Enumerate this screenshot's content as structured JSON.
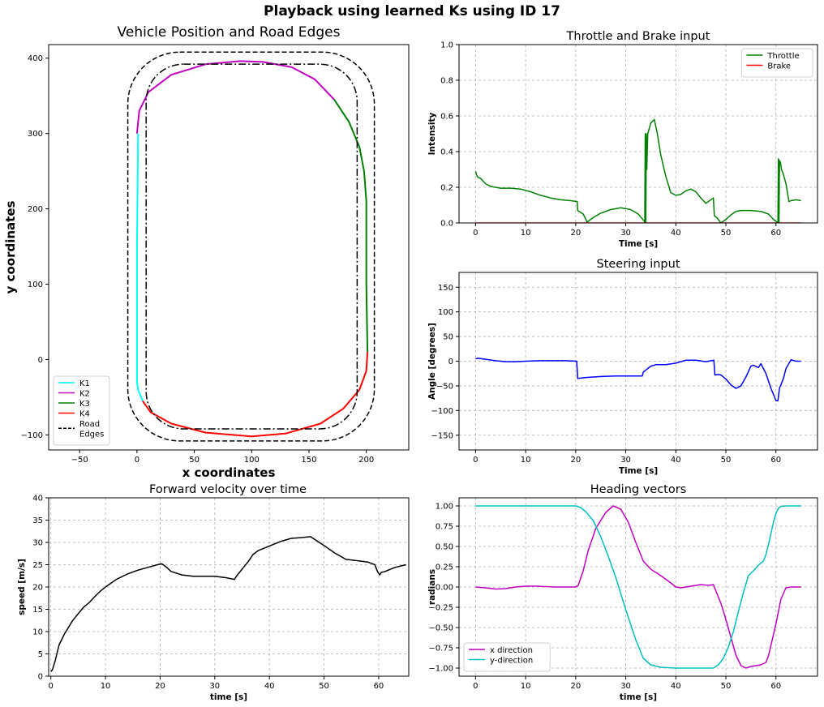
{
  "suptitle": "Playback using learned Ks using ID 17",
  "chart_data": [
    {
      "id": "position",
      "type": "line",
      "title": "Vehicle Position and Road Edges",
      "xlabel": "x coordinates",
      "ylabel": "y coordinates",
      "xlim": [
        -77,
        237
      ],
      "ylim": [
        -120,
        418
      ],
      "xticks": [
        -50,
        0,
        50,
        100,
        150,
        200
      ],
      "yticks": [
        -100,
        0,
        100,
        200,
        300,
        400
      ],
      "grid": false,
      "legend": {
        "position": "lower-left",
        "entries": [
          "K1",
          "K2",
          "K3",
          "K4",
          "Road\nEdges"
        ]
      },
      "series": [
        {
          "name": "K1",
          "color": "#00ffff",
          "x": [
            5,
            1,
            0,
            0,
            0,
            1
          ],
          "y": [
            -55,
            -40,
            -30,
            30,
            150,
            300
          ]
        },
        {
          "name": "K2",
          "color": "#c000c0",
          "x": [
            0,
            2,
            10,
            30,
            60,
            90,
            110,
            135,
            155,
            172
          ],
          "y": [
            300,
            330,
            355,
            378,
            392,
            396,
            395,
            388,
            372,
            345
          ]
        },
        {
          "name": "K3",
          "color": "#008000",
          "x": [
            172,
            185,
            194,
            198,
            200,
            200,
            201
          ],
          "y": [
            345,
            315,
            282,
            250,
            210,
            100,
            10
          ]
        },
        {
          "name": "K4",
          "color": "#ff0000",
          "x": [
            201,
            200,
            194,
            180,
            160,
            130,
            100,
            60,
            30,
            12,
            5
          ],
          "y": [
            10,
            -15,
            -40,
            -65,
            -85,
            -98,
            -102,
            -97,
            -85,
            -70,
            -55
          ]
        },
        {
          "name": "Road Edges",
          "color": "#000000",
          "style": "dashed",
          "role": "outer-edge",
          "bounds": {
            "xmin": -8,
            "xmax": 207,
            "ymin": -108,
            "ymax": 408
          }
        },
        {
          "role": "inner-edge",
          "color": "#000000",
          "style": "dashdot",
          "bounds": {
            "xmin": 8,
            "xmax": 192,
            "ymin": -92,
            "ymax": 392
          }
        }
      ]
    },
    {
      "id": "throttle",
      "type": "line",
      "title": "Throttle and Brake input",
      "xlabel": "Time [s]",
      "ylabel": "Intensity",
      "xlim": [
        -3.3,
        68.3
      ],
      "ylim": [
        0,
        1.0
      ],
      "xticks": [
        0,
        10,
        20,
        30,
        40,
        50,
        60
      ],
      "yticks": [
        0.0,
        0.2,
        0.4,
        0.6,
        0.8,
        1.0
      ],
      "grid": true,
      "legend": {
        "position": "top-right",
        "entries": [
          "Throttle",
          "Brake"
        ]
      },
      "series": [
        {
          "name": "Throttle",
          "color": "#008000",
          "x": [
            0,
            0.2,
            0.5,
            1,
            2,
            3,
            5,
            7,
            9,
            11,
            13,
            15,
            17,
            19,
            20.3,
            20.4,
            21.5,
            22.3,
            23.5,
            25,
            27,
            29,
            31,
            32.5,
            33.7,
            33.8,
            33.9,
            34.0,
            34.1,
            34.2,
            34.4,
            35,
            35.7,
            36.3,
            37,
            38,
            39,
            40,
            41,
            42,
            43,
            44,
            45,
            46,
            47.5,
            47.7,
            48.2,
            49,
            50,
            51,
            52,
            53,
            55,
            57,
            58.5,
            59.5,
            60.4,
            60.5,
            60.6,
            60.7,
            60.9,
            61.1,
            61.4,
            62,
            62.6,
            63,
            64,
            65
          ],
          "y": [
            0.29,
            0.27,
            0.255,
            0.25,
            0.22,
            0.205,
            0.195,
            0.195,
            0.19,
            0.175,
            0.155,
            0.14,
            0.13,
            0.125,
            0.12,
            0.07,
            0.05,
            0.005,
            0.03,
            0.055,
            0.075,
            0.085,
            0.075,
            0.05,
            0.01,
            0.0,
            0.5,
            0.0,
            0.5,
            0.3,
            0.5,
            0.56,
            0.58,
            0.5,
            0.38,
            0.26,
            0.17,
            0.155,
            0.16,
            0.18,
            0.19,
            0.175,
            0.14,
            0.11,
            0.14,
            0.04,
            0.03,
            0.0,
            0.02,
            0.045,
            0.065,
            0.07,
            0.07,
            0.065,
            0.05,
            0.02,
            0.0,
            0.36,
            0.0,
            0.35,
            0.34,
            0.3,
            0.28,
            0.22,
            0.12,
            0.125,
            0.13,
            0.125
          ]
        },
        {
          "name": "Brake",
          "color": "#ff0000",
          "x": [
            0,
            65
          ],
          "y": [
            0,
            0
          ]
        }
      ]
    },
    {
      "id": "steering",
      "type": "line",
      "title": "Steering input",
      "xlabel": "Time [s]",
      "ylabel": "Angle [degrees]",
      "xlim": [
        -3.3,
        68.3
      ],
      "ylim": [
        -180,
        180
      ],
      "xticks": [
        0,
        10,
        20,
        30,
        40,
        50,
        60
      ],
      "yticks": [
        -150,
        -100,
        -50,
        0,
        50,
        100,
        150
      ],
      "grid": true,
      "series": [
        {
          "name": "",
          "color": "#0000ff",
          "x": [
            0,
            0.5,
            2,
            4,
            6,
            8,
            10,
            13,
            16,
            18,
            20.2,
            20.4,
            22,
            25,
            28,
            30,
            32,
            33.3,
            33.5,
            34,
            35,
            36,
            38,
            40,
            42,
            44,
            46,
            47.6,
            47.8,
            48.5,
            49,
            50,
            51,
            52,
            53,
            54,
            55,
            55.5,
            56.5,
            57,
            58,
            59,
            60,
            60.4,
            60.7,
            61.5,
            62,
            63,
            64,
            65
          ],
          "y": [
            5,
            6,
            4,
            1,
            -1,
            -1,
            0,
            1,
            1,
            1,
            0,
            -35,
            -33,
            -31,
            -30,
            -30,
            -30,
            -30,
            -22,
            -18,
            -10,
            -7,
            -7,
            -4,
            2,
            2,
            -1,
            2,
            -28,
            -27,
            -28,
            -36,
            -48,
            -55,
            -50,
            -32,
            -10,
            -8,
            -13,
            -5,
            -25,
            -55,
            -80,
            -80,
            -55,
            -35,
            -15,
            3,
            0,
            0
          ]
        }
      ]
    },
    {
      "id": "velocity",
      "type": "line",
      "title": "Forward velocity over time",
      "xlabel": "time [s]",
      "ylabel": "speed [m/s]",
      "xlim": [
        -0.4,
        65.5
      ],
      "ylim": [
        0,
        40
      ],
      "xticks": [
        0,
        10,
        20,
        30,
        40,
        50,
        60
      ],
      "yticks": [
        0,
        5,
        10,
        15,
        20,
        25,
        30,
        35,
        40
      ],
      "grid": true,
      "series": [
        {
          "name": "",
          "color": "#000000",
          "x": [
            0,
            0.3,
            0.8,
            1.5,
            2.5,
            3,
            4,
            5,
            6,
            7,
            8,
            9,
            10,
            12,
            14,
            16,
            18,
            19.5,
            20.3,
            21,
            22,
            24,
            26,
            28,
            30,
            32,
            33.6,
            34,
            35,
            36,
            37,
            38,
            40,
            42,
            44,
            46,
            47.5,
            48,
            49,
            50,
            52,
            54,
            56,
            58,
            59.3,
            59.8,
            60.2,
            60.5,
            61,
            62,
            63,
            64,
            65
          ],
          "y": [
            1.0,
            1.5,
            3.5,
            7.0,
            9.5,
            10.5,
            12.5,
            14.0,
            15.5,
            16.5,
            17.8,
            19.0,
            20.0,
            21.7,
            22.9,
            23.8,
            24.5,
            25.0,
            25.2,
            24.6,
            23.5,
            22.7,
            22.4,
            22.4,
            22.4,
            22.1,
            21.7,
            22.5,
            24.0,
            25.5,
            27.3,
            28.2,
            29.2,
            30.2,
            30.9,
            31.1,
            31.3,
            30.9,
            30.1,
            29.3,
            27.6,
            26.2,
            25.9,
            25.6,
            25.0,
            23.4,
            22.7,
            23.3,
            23.4,
            23.9,
            24.4,
            24.7,
            25.0
          ]
        }
      ]
    },
    {
      "id": "heading",
      "type": "line",
      "title": "Heading vectors",
      "xlabel": "time [s]",
      "ylabel": "radians",
      "xlim": [
        -3.3,
        68.3
      ],
      "ylim": [
        -1.1,
        1.1
      ],
      "xticks": [
        0,
        10,
        20,
        30,
        40,
        50,
        60
      ],
      "yticks": [
        -1.0,
        -0.75,
        -0.5,
        -0.25,
        0.0,
        0.25,
        0.5,
        0.75,
        1.0
      ],
      "grid": true,
      "legend": {
        "position": "lower-left",
        "entries": [
          "x direction",
          "y-direction"
        ]
      },
      "series": [
        {
          "name": "x direction",
          "color": "#c000c0",
          "x": [
            0,
            2,
            4,
            6,
            8,
            10,
            12,
            14,
            16,
            18,
            20,
            20.5,
            21.5,
            22.5,
            24,
            26,
            27.5,
            29,
            30.5,
            32,
            33.5,
            35,
            37,
            39,
            40,
            41,
            43,
            45,
            46.5,
            47.5,
            48,
            49,
            50,
            51,
            52,
            53,
            54,
            55,
            56,
            57,
            58,
            58.5,
            59,
            60,
            61,
            62,
            63,
            64,
            65
          ],
          "y": [
            0,
            -0.01,
            -0.025,
            -0.02,
            0,
            0.01,
            0.01,
            0.005,
            0,
            0,
            0,
            0.02,
            0.2,
            0.45,
            0.72,
            0.92,
            1.0,
            0.96,
            0.8,
            0.55,
            0.32,
            0.22,
            0.14,
            0.05,
            0.0,
            -0.01,
            0.01,
            0.03,
            0.02,
            0.03,
            -0.05,
            -0.2,
            -0.4,
            -0.62,
            -0.84,
            -0.97,
            -1.0,
            -0.98,
            -0.97,
            -0.96,
            -0.93,
            -0.85,
            -0.72,
            -0.45,
            -0.15,
            -0.01,
            0.0,
            0.0,
            0.0
          ]
        },
        {
          "name": "y-direction",
          "color": "#00bfbf",
          "x": [
            0,
            5,
            10,
            15,
            20,
            21,
            22,
            23.5,
            25,
            26.5,
            28,
            30,
            32,
            33.5,
            35,
            37,
            40,
            45,
            47.5,
            48.5,
            49.5,
            50.5,
            51.5,
            52.5,
            53.5,
            54.5,
            55.5,
            56.5,
            57.5,
            58,
            58.5,
            59,
            59.5,
            60,
            60.5,
            61,
            62,
            63,
            64,
            65
          ],
          "y": [
            1.0,
            1.0,
            1.0,
            1.0,
            1.0,
            0.98,
            0.93,
            0.82,
            0.62,
            0.38,
            0.12,
            -0.28,
            -0.65,
            -0.88,
            -0.96,
            -0.99,
            -1.0,
            -1.0,
            -1.0,
            -0.96,
            -0.88,
            -0.74,
            -0.55,
            -0.3,
            -0.07,
            0.14,
            0.2,
            0.27,
            0.32,
            0.4,
            0.52,
            0.66,
            0.8,
            0.91,
            0.97,
            0.995,
            1.0,
            1.0,
            1.0,
            1.0
          ]
        }
      ]
    }
  ]
}
